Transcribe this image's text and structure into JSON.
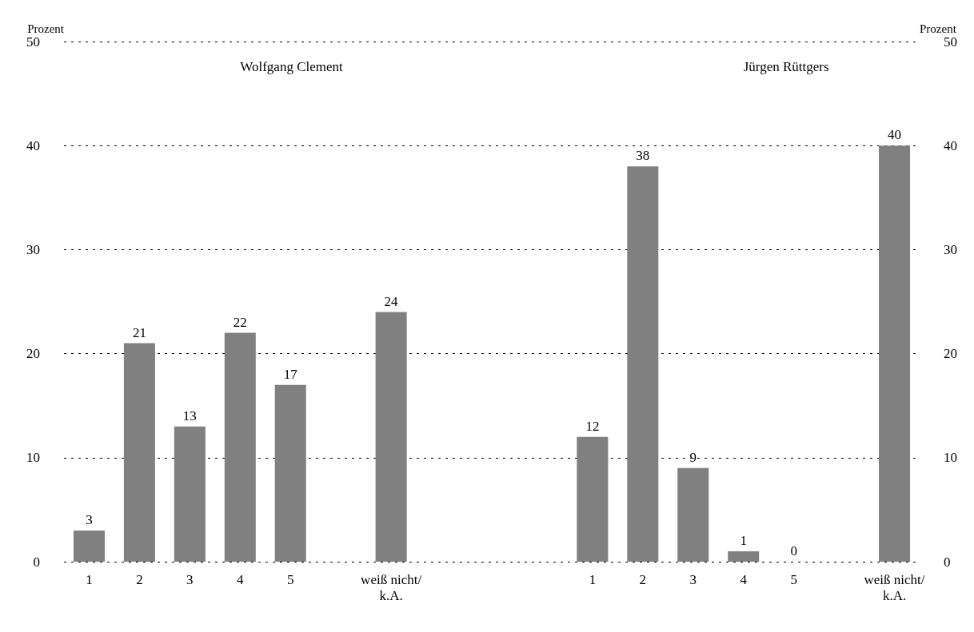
{
  "chart_data": {
    "type": "bar",
    "ylabel": "Prozent",
    "y2label": "Prozent",
    "annotations": [
      "Wolfgang Clement",
      "Jürgen Rüttgers"
    ],
    "categories": [
      "1",
      "2",
      "3",
      "4",
      "5",
      null,
      "weiß nicht/\nk.A.",
      null,
      null,
      null,
      "1",
      "2",
      "3",
      "4",
      "5",
      null,
      "weiß nicht/\nk.A."
    ],
    "series": [
      {
        "color": "#808080",
        "values": [
          3,
          21,
          13,
          22,
          17,
          null,
          24,
          null,
          null,
          null,
          12,
          38,
          9,
          1,
          0,
          null,
          40
        ]
      }
    ],
    "ylim": [
      0,
      50
    ],
    "yticks": [
      0,
      10,
      20,
      30,
      40,
      50
    ],
    "y2lim": [
      0,
      50
    ],
    "y2ticks": [
      0,
      10,
      20,
      30,
      40,
      50
    ],
    "grid": "y",
    "line_style": "dashed",
    "data_labels": true
  }
}
